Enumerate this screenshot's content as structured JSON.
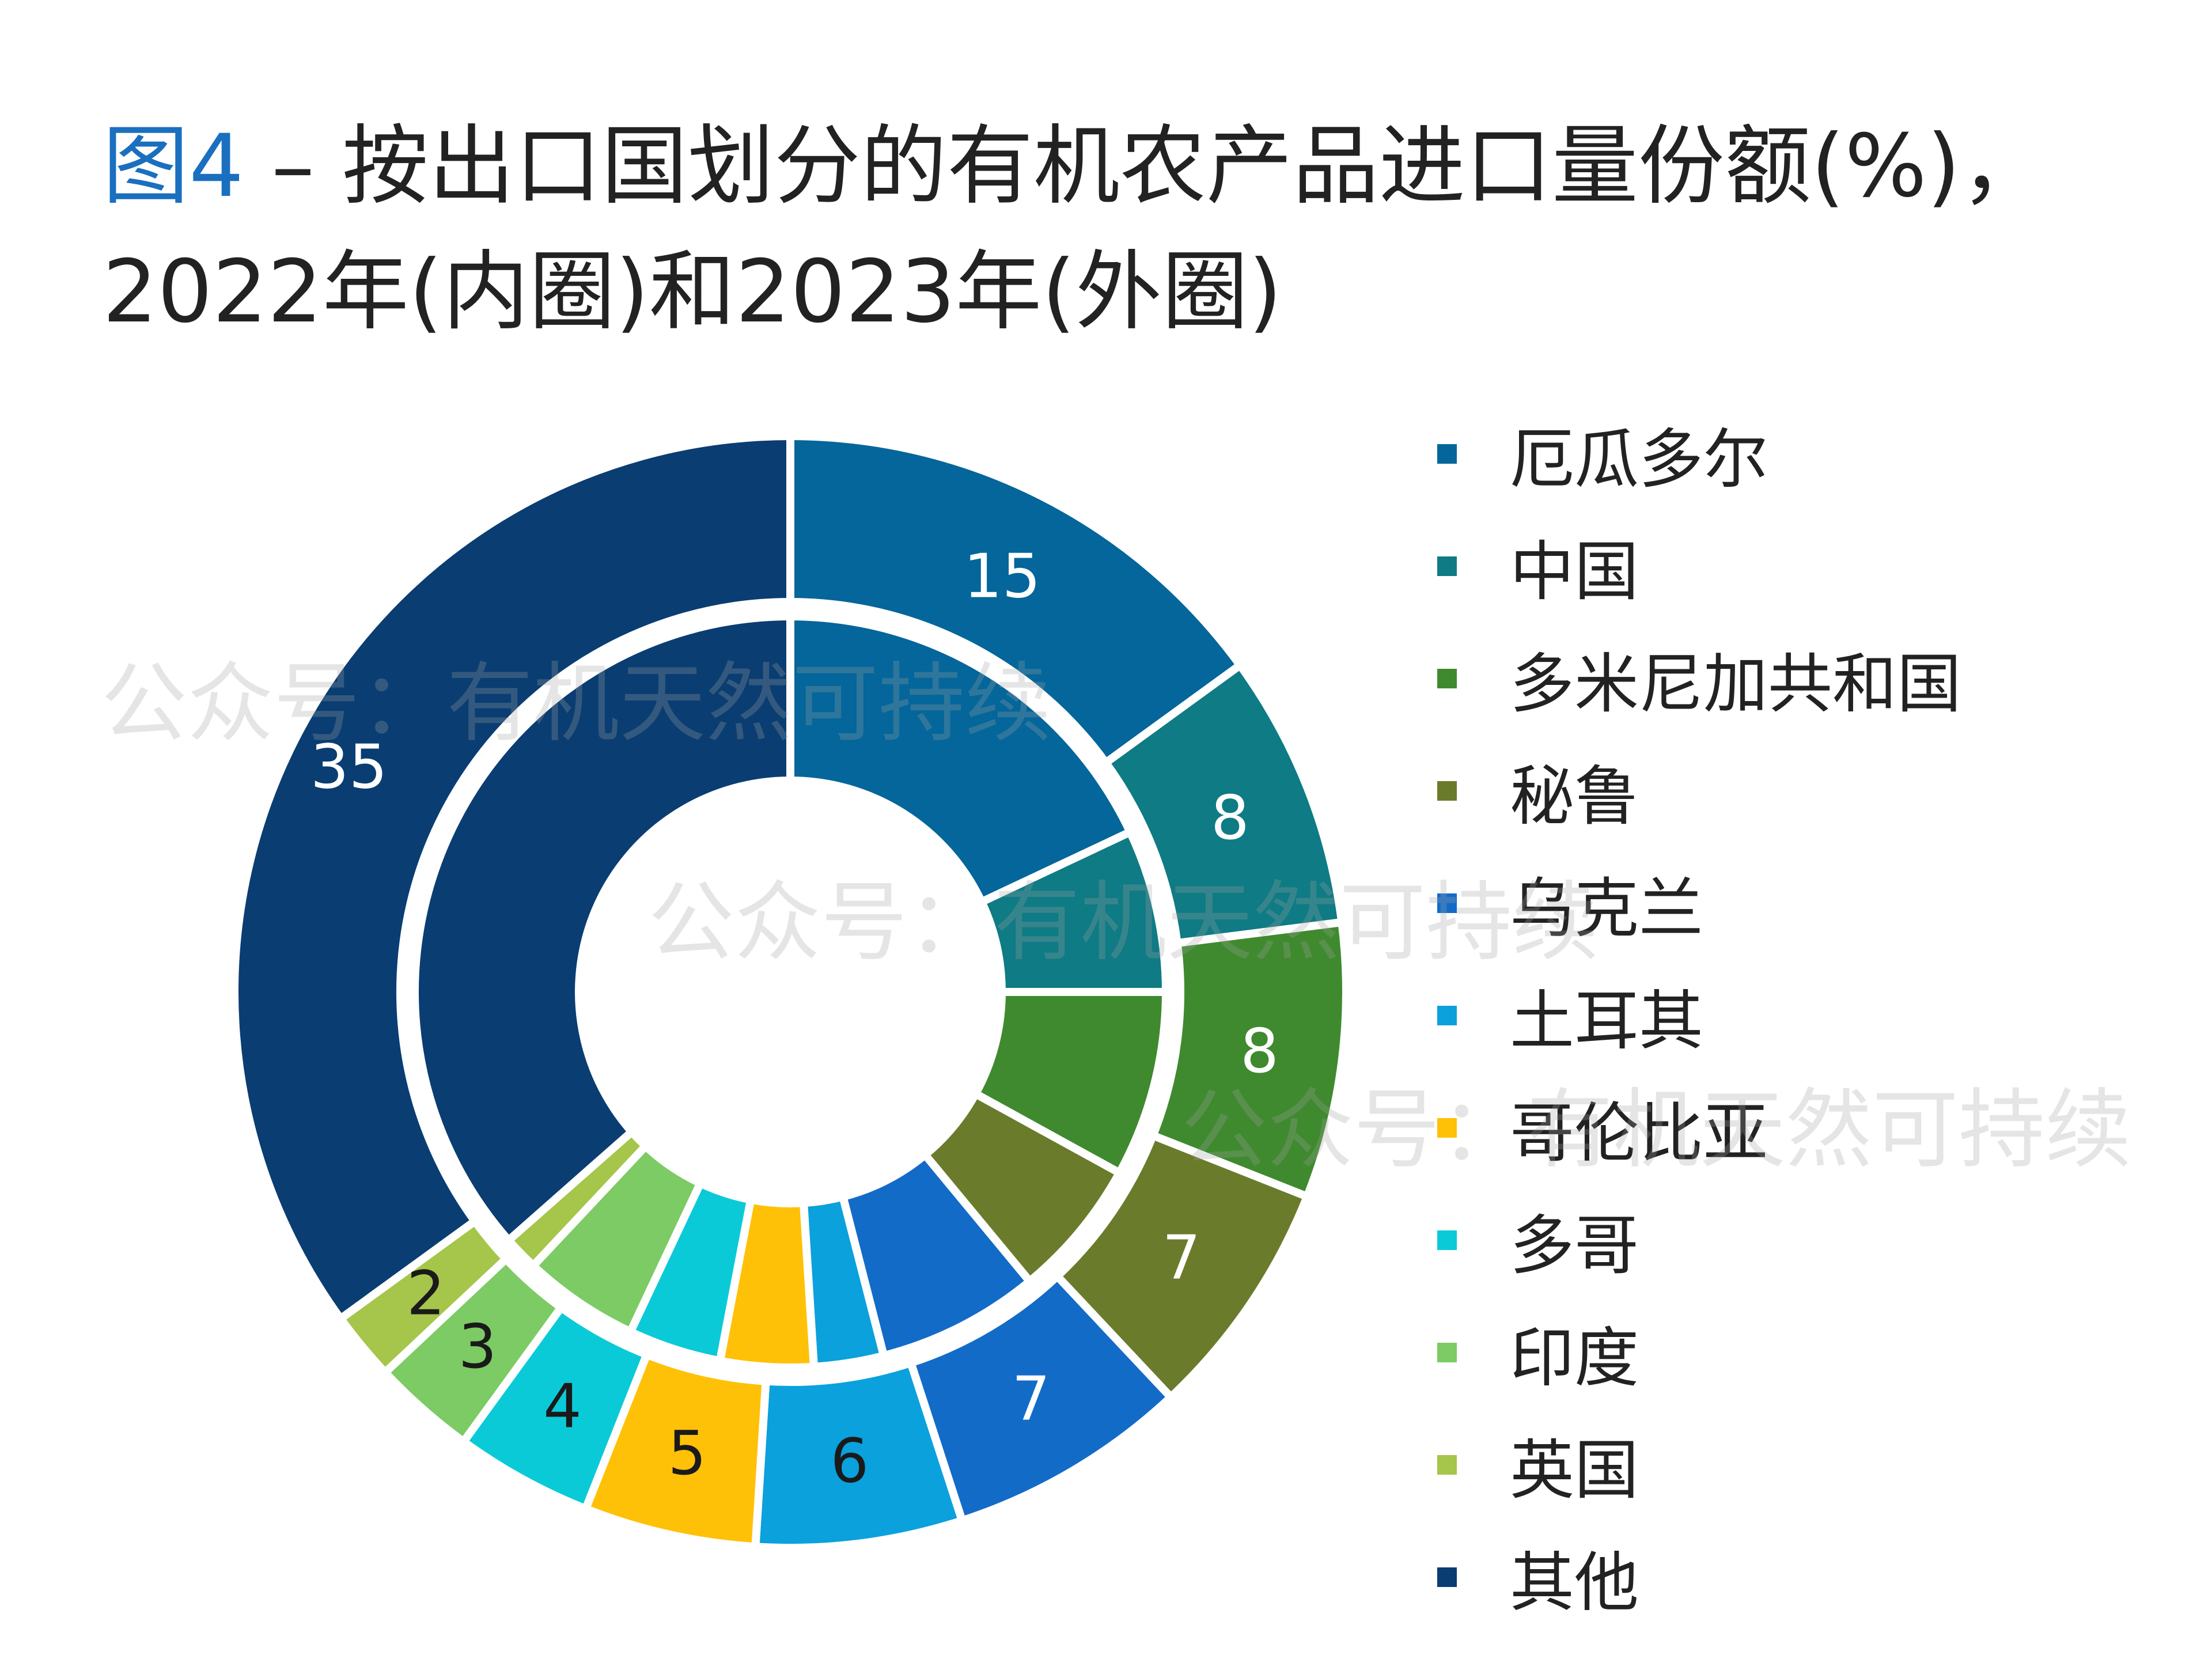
{
  "title": {
    "fig_label": "图4",
    "line1": " – 按出口国划分的有机农产品进口量份额(%)，",
    "line2": "2022年(内圈)和2023年(外圈)"
  },
  "watermark": "公众号：有机天然可持续",
  "chart_data": {
    "type": "donut",
    "categories": [
      "厄瓜多尔",
      "中国",
      "多米尼加共和国",
      "秘鲁",
      "乌克兰",
      "土耳其",
      "哥伦比亚",
      "多哥",
      "印度",
      "英国",
      "其他"
    ],
    "colors": [
      "#04669a",
      "#0f7b84",
      "#3f8a2f",
      "#6b7b2c",
      "#136bc8",
      "#0aa1dc",
      "#ffc107",
      "#0bcad8",
      "#7ccb64",
      "#a5c64a",
      "#0a3d72"
    ],
    "label_colors": [
      "#ffffff",
      "#ffffff",
      "#ffffff",
      "#ffffff",
      "#ffffff",
      "#1a1a1a",
      "#1a1a1a",
      "#1a1a1a",
      "#1a1a1a",
      "#1a1a1a",
      "#ffffff"
    ],
    "series": [
      {
        "ring": "outer",
        "values": [
          15,
          8,
          8,
          7,
          7,
          6,
          5,
          4,
          3,
          2,
          35
        ]
      },
      {
        "ring": "inner",
        "values": [
          18,
          7,
          8,
          6,
          7,
          3,
          4,
          4,
          5,
          1.5,
          36.5
        ]
      }
    ],
    "data_labels": [
      "15",
      "8",
      "8",
      "7",
      "7",
      "6",
      "5",
      "4",
      "3",
      "2",
      "35"
    ],
    "legend_position": "right"
  }
}
